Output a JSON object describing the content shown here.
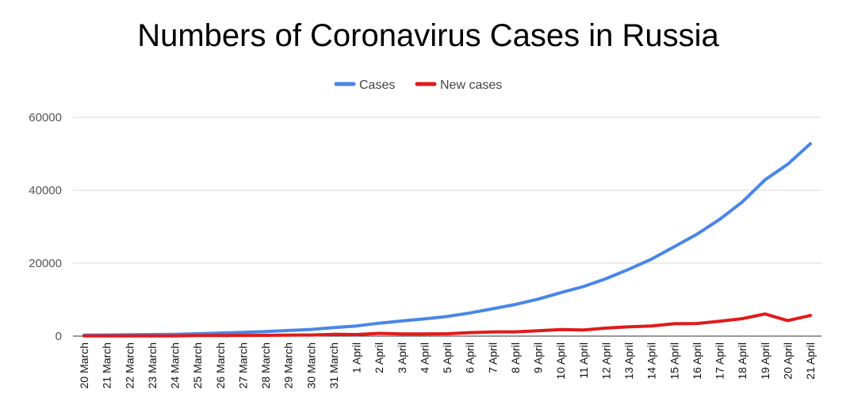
{
  "chart_data": {
    "type": "line",
    "title": "Numbers of Coronavirus Cases in Russia",
    "xlabel": "",
    "ylabel": "",
    "ylim": [
      0,
      60000
    ],
    "yticks": [
      "0",
      "20000",
      "40000",
      "60000"
    ],
    "grid": true,
    "legend_position": "top-center",
    "categories": [
      "20 March",
      "21 March",
      "22 March",
      "23 March",
      "24 March",
      "25 March",
      "26 March",
      "27 March",
      "28 March",
      "29 March",
      "30 March",
      "31 March",
      "1 April",
      "2 April",
      "3 April",
      "4 April",
      "5 April",
      "6 April",
      "7 April",
      "8 April",
      "9 April",
      "10 April",
      "11 April",
      "12 April",
      "13 April",
      "14 April",
      "15 April",
      "16 April",
      "17 April",
      "18 April",
      "19 April",
      "20 April",
      "21 April"
    ],
    "series": [
      {
        "name": "Cases",
        "color": "#4a86e8",
        "values": [
          253,
          306,
          367,
          438,
          495,
          658,
          840,
          1036,
          1264,
          1534,
          1836,
          2337,
          2777,
          3548,
          4149,
          4731,
          5389,
          6343,
          7497,
          8672,
          10131,
          11917,
          13584,
          15770,
          18328,
          21102,
          24490,
          27938,
          32008,
          36793,
          42853,
          47121,
          52763
        ]
      },
      {
        "name": "New cases",
        "color": "#e01b1b",
        "values": [
          54,
          53,
          61,
          71,
          57,
          163,
          182,
          196,
          228,
          270,
          302,
          501,
          440,
          771,
          601,
          582,
          658,
          954,
          1154,
          1175,
          1459,
          1786,
          1667,
          2186,
          2558,
          2774,
          3388,
          3448,
          4070,
          4785,
          6060,
          4268,
          5642
        ]
      }
    ]
  }
}
